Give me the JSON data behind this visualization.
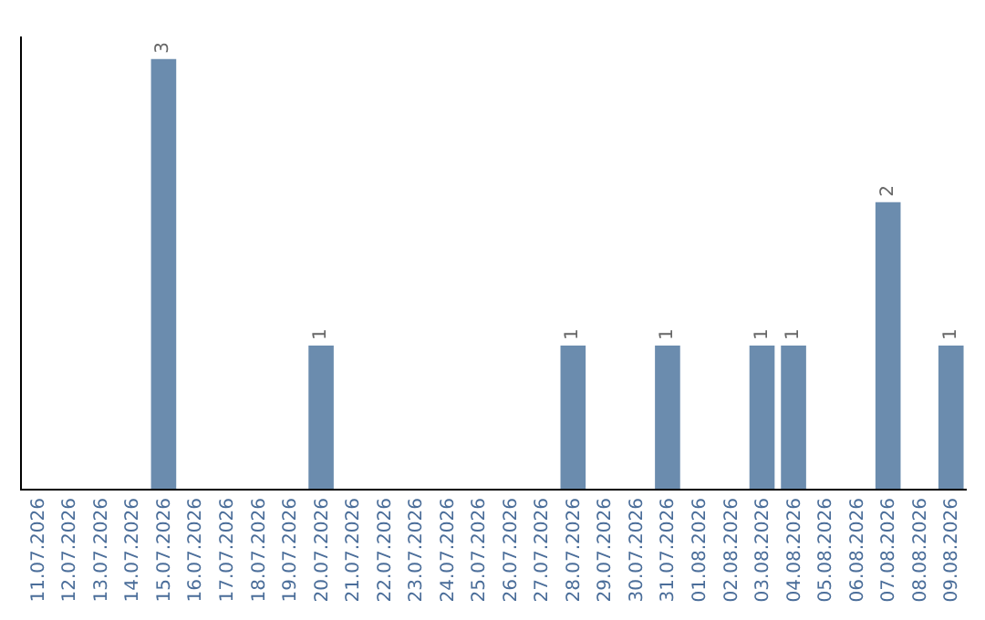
{
  "chart_data": {
    "type": "bar",
    "categories": [
      "11.07.2026",
      "12.07.2026",
      "13.07.2026",
      "14.07.2026",
      "15.07.2026",
      "16.07.2026",
      "17.07.2026",
      "18.07.2026",
      "19.07.2026",
      "20.07.2026",
      "21.07.2026",
      "22.07.2026",
      "23.07.2026",
      "24.07.2026",
      "25.07.2026",
      "26.07.2026",
      "27.07.2026",
      "28.07.2026",
      "29.07.2026",
      "30.07.2026",
      "31.07.2026",
      "01.08.2026",
      "02.08.2026",
      "03.08.2026",
      "04.08.2026",
      "05.08.2026",
      "06.08.2026",
      "07.08.2026",
      "08.08.2026",
      "09.08.2026"
    ],
    "values": [
      0,
      0,
      0,
      0,
      3,
      0,
      0,
      0,
      0,
      1,
      0,
      0,
      0,
      0,
      0,
      0,
      0,
      1,
      0,
      0,
      1,
      0,
      0,
      1,
      1,
      0,
      0,
      2,
      0,
      1
    ],
    "value_labels": [
      null,
      null,
      null,
      null,
      "3",
      null,
      null,
      null,
      null,
      "1",
      null,
      null,
      null,
      null,
      null,
      null,
      null,
      "1",
      null,
      null,
      "1",
      null,
      null,
      "1",
      "1",
      null,
      null,
      "2",
      null,
      "1"
    ],
    "color": "#6b8cae",
    "tick_labels": "x"
  }
}
